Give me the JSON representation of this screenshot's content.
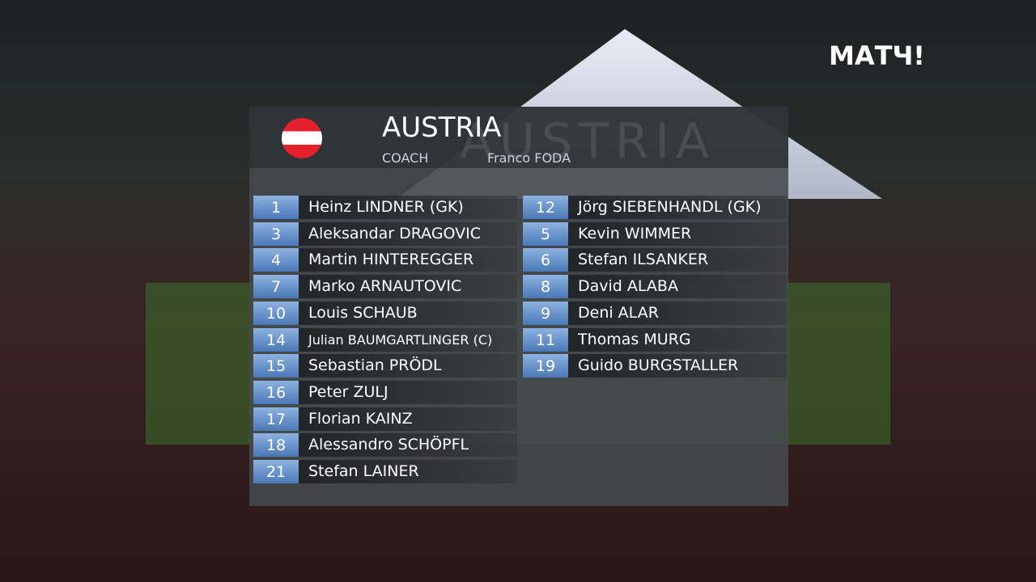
{
  "logo": "МАТЧ!",
  "team": {
    "name": "AUSTRIA",
    "watermark": "AUSTRIA",
    "coach_label": "COACH",
    "coach_name": "Franco FODA"
  },
  "left": [
    [
      "1",
      "Heinz LINDNER (GK)"
    ],
    [
      "3",
      "Aleksandar DRAGOVIC"
    ],
    [
      "4",
      "Martin HINTEREGGER"
    ],
    [
      "7",
      "Marko ARNAUTOVIC"
    ],
    [
      "10",
      "Louis SCHAUB"
    ],
    [
      "14",
      "Julian BAUMGARTLINGER (C)"
    ],
    [
      "15",
      "Sebastian PRÖDL"
    ],
    [
      "16",
      "Peter ZULJ"
    ],
    [
      "17",
      "Florian KAINZ"
    ],
    [
      "18",
      "Alessandro SCHÖPFL"
    ],
    [
      "21",
      "Stefan LAINER"
    ]
  ],
  "right": [
    [
      "12",
      "Jörg SIEBENHANDL (GK)"
    ],
    [
      "5",
      "Kevin WIMMER"
    ],
    [
      "6",
      "Stefan ILSANKER"
    ],
    [
      "8",
      "David ALABA"
    ],
    [
      "9",
      "Deni ALAR"
    ],
    [
      "11",
      "Thomas MURG"
    ],
    [
      "19",
      "Guido BURGSTALLER"
    ]
  ]
}
